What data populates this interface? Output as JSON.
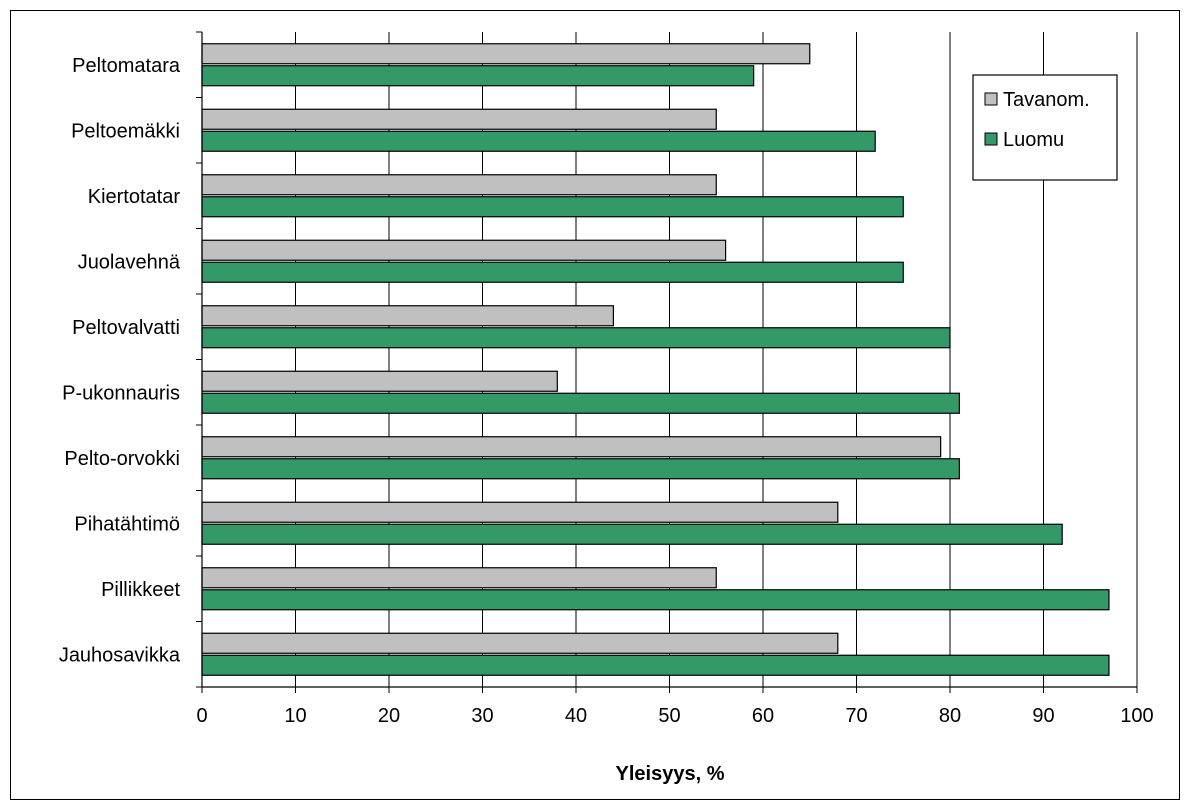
{
  "chart_data": {
    "type": "bar",
    "orientation": "horizontal",
    "categories": [
      "Peltomatara",
      "Peltoemäkki",
      "Kiertotatar",
      "Juolavehnä",
      "Peltovalvatti",
      "P-ukonnauris",
      "Pelto-orvokki",
      "Pihatähtimö",
      "Pillikkeet",
      "Jauhosavikka"
    ],
    "series": [
      {
        "name": "Tavanom.",
        "color": "#c0c0c0",
        "values": [
          65,
          55,
          55,
          56,
          44,
          38,
          79,
          68,
          55,
          68
        ]
      },
      {
        "name": "Luomu",
        "color": "#339966",
        "values": [
          59,
          72,
          75,
          75,
          80,
          81,
          81,
          92,
          97,
          97
        ]
      }
    ],
    "xlabel": "Yleisyys, %",
    "ylabel": "",
    "xlim": [
      0,
      100
    ],
    "xticks": [
      "0",
      "10",
      "20",
      "30",
      "40",
      "50",
      "60",
      "70",
      "80",
      "90",
      "100"
    ],
    "grid": "vertical",
    "legend_position": "top-right"
  }
}
